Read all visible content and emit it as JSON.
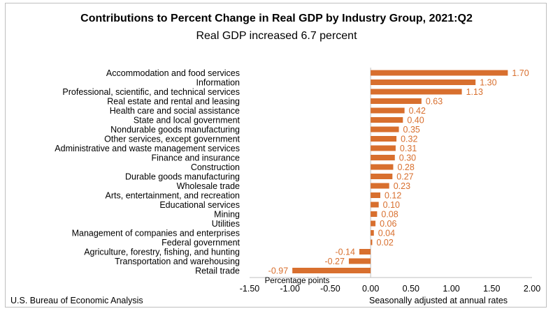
{
  "chart_data": {
    "type": "bar",
    "orientation": "horizontal",
    "title": "Contributions to Percent Change in Real GDP by Industry Group, 2021:Q2",
    "subtitle": "Real GDP increased 6.7 percent",
    "xlabel": "Percentage points",
    "xlim": [
      -1.5,
      2.0
    ],
    "xticks": [
      "-1.50",
      "-1.00",
      "-0.50",
      "0.00",
      "0.50",
      "1.00",
      "1.50",
      "2.00"
    ],
    "categories": [
      "Accommodation and food services",
      "Information",
      "Professional, scientific, and technical services",
      "Real estate and rental and leasing",
      "Health care and social assistance",
      "State and local government",
      "Nondurable goods manufacturing",
      "Other services, except government",
      "Administrative and waste management services",
      "Finance and insurance",
      "Construction",
      "Durable goods manufacturing",
      "Wholesale trade",
      "Arts, entertainment, and recreation",
      "Educational services",
      "Mining",
      "Utilities",
      "Management of companies and enterprises",
      "Federal government",
      "Agriculture, forestry, fishing, and hunting",
      "Transportation and warehousing",
      "Retail trade"
    ],
    "values": [
      1.7,
      1.3,
      1.13,
      0.63,
      0.42,
      0.4,
      0.35,
      0.32,
      0.31,
      0.3,
      0.28,
      0.27,
      0.23,
      0.12,
      0.1,
      0.08,
      0.06,
      0.04,
      0.02,
      -0.14,
      -0.27,
      -0.97
    ],
    "value_labels": [
      "1.70",
      "1.30",
      "1.13",
      "0.63",
      "0.42",
      "0.40",
      "0.35",
      "0.32",
      "0.31",
      "0.30",
      "0.28",
      "0.27",
      "0.23",
      "0.12",
      "0.10",
      "0.08",
      "0.06",
      "0.04",
      "0.02",
      "-0.14",
      "-0.27",
      "-0.97"
    ],
    "bar_color": "#d86f2e",
    "label_color": "#d86f2e",
    "grid": false,
    "legend": "none"
  },
  "footer": {
    "source": "U.S. Bureau of Economic Analysis",
    "note": "Seasonally adjusted at annual rates"
  }
}
